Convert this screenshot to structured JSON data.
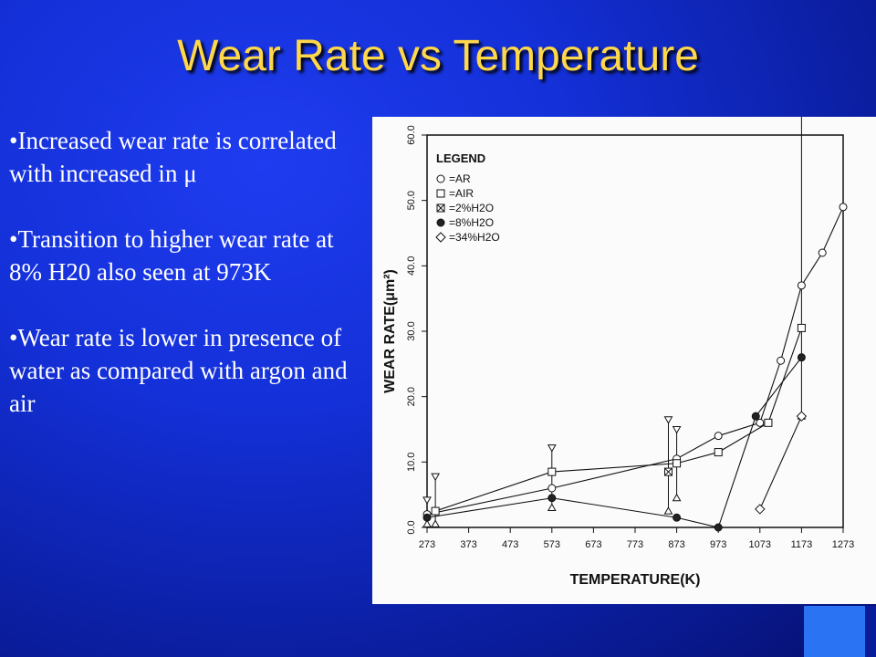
{
  "slide": {
    "title": "Wear Rate vs Temperature",
    "bullets": [
      "•Increased wear rate is correlated with increased in μ",
      "•Transition to higher wear rate at 8% H20 also seen at 973K",
      "•Wear rate is lower in presence of water as compared with argon and air"
    ]
  },
  "colors": {
    "title": "#ffd84a",
    "background": "#1430d8",
    "accent_square": "#2a73f2"
  },
  "chart_data": {
    "type": "line",
    "xlabel": "TEMPERATURE(K)",
    "ylabel": "WEAR RATE(μm²)",
    "xlim": [
      273,
      1273
    ],
    "ylim": [
      0,
      60
    ],
    "xticks": [
      "273",
      "373",
      "473",
      "573",
      "673",
      "773",
      "873",
      "973",
      "1073",
      "1173",
      "1273"
    ],
    "yticks": [
      "0.0",
      "10.0",
      "20.0",
      "30.0",
      "40.0",
      "50.0",
      "60.0"
    ],
    "legend_title": "LEGEND",
    "legend": [
      "=AR",
      "=AIR",
      "=2%H2O",
      "=8%H2O",
      "=34%H2O"
    ],
    "series": [
      {
        "name": "=AR",
        "marker": "circle-open",
        "points": [
          [
            273,
            2
          ],
          [
            573,
            6
          ],
          [
            873,
            10.5
          ],
          [
            973,
            14
          ],
          [
            1073,
            16
          ],
          [
            1123,
            25.5
          ],
          [
            1173,
            37
          ],
          [
            1223,
            42
          ],
          [
            1273,
            49
          ]
        ]
      },
      {
        "name": "=AIR",
        "marker": "square-open",
        "points": [
          [
            293,
            2.5
          ],
          [
            573,
            8.5
          ],
          [
            873,
            9.8
          ],
          [
            973,
            11.5
          ],
          [
            1093,
            16
          ],
          [
            1173,
            30.5
          ]
        ]
      },
      {
        "name": "=2%H2O",
        "marker": "square-cross",
        "points": [
          [
            853,
            8.5
          ]
        ]
      },
      {
        "name": "=8%H2O",
        "marker": "circle-filled",
        "points": [
          [
            273,
            1.5
          ],
          [
            573,
            4.5
          ],
          [
            873,
            1.5
          ],
          [
            973,
            0
          ],
          [
            1063,
            17
          ],
          [
            1173,
            26
          ]
        ]
      },
      {
        "name": "=34%H2O",
        "marker": "diamond-open",
        "points": [
          [
            1073,
            2.8
          ],
          [
            1173,
            17
          ]
        ]
      }
    ],
    "error_bars": [
      {
        "x": 273,
        "low": 0.5,
        "high": 4.2
      },
      {
        "x": 293,
        "low": 0.5,
        "high": 7.8
      },
      {
        "x": 573,
        "low": 3,
        "high": 12.2
      },
      {
        "x": 853,
        "low": 2.5,
        "high": 16.5
      },
      {
        "x": 873,
        "low": 4.5,
        "high": 15
      },
      {
        "x": 1173,
        "low": 17,
        "high": 63.5
      }
    ]
  }
}
